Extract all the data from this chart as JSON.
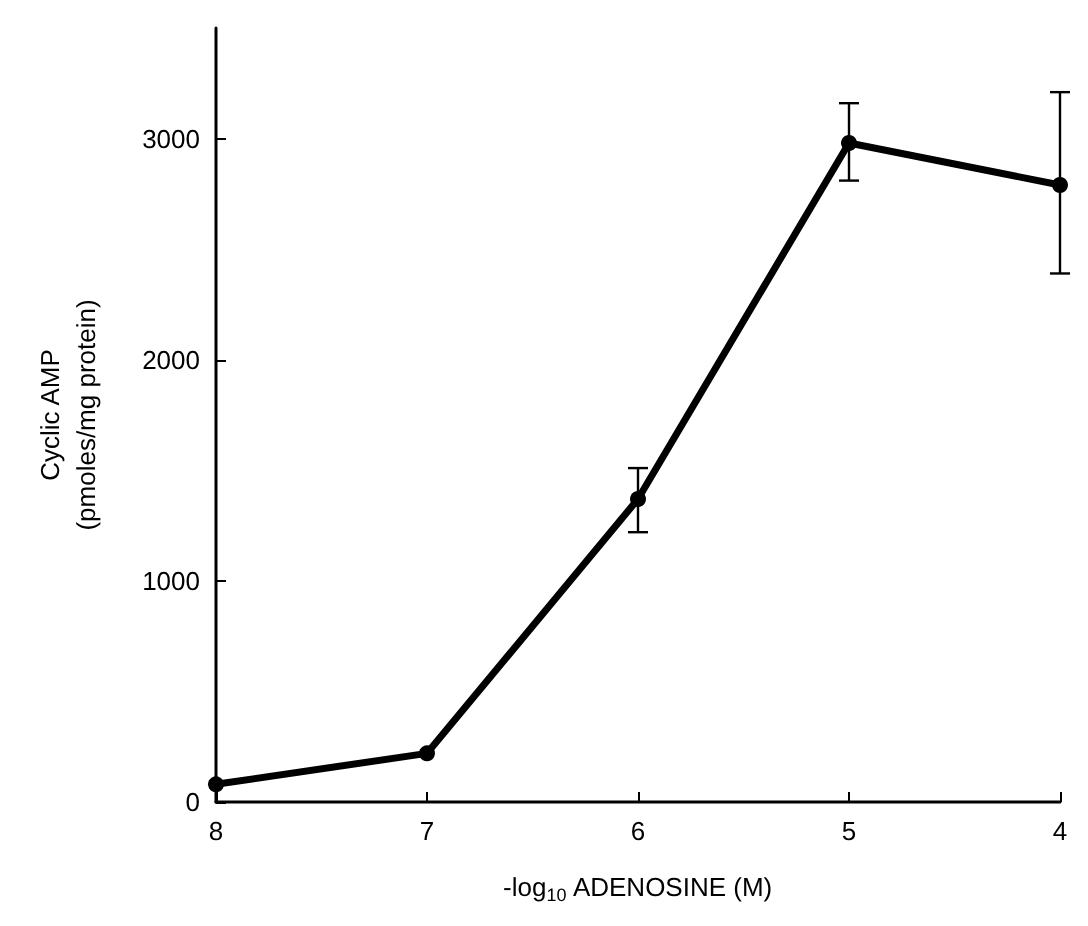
{
  "chart_data": {
    "type": "line",
    "xlabel": "-log$_{10}$ ADENOSINE (M)",
    "ylabel": "Cyclic AMP\n(pmoles/mg protein)",
    "x": [
      8,
      7,
      6,
      5,
      4
    ],
    "series": [
      {
        "color": "#000000",
        "values": [
          80,
          220,
          1370,
          2980,
          2790
        ],
        "errors": [
          null,
          null,
          [
            1220,
            1510
          ],
          [
            2810,
            3160
          ],
          [
            2390,
            3210
          ]
        ]
      }
    ],
    "xlim": [
      8,
      4
    ],
    "xticks": [
      8,
      7,
      6,
      5,
      4
    ],
    "ylim": [
      0,
      3500
    ],
    "yticks": [
      0,
      1000,
      2000,
      3000
    ],
    "grid": false,
    "marker": "circle",
    "line_style": "solid"
  }
}
